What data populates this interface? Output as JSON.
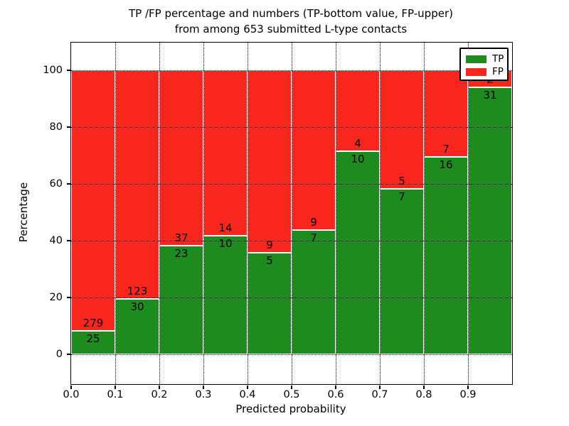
{
  "title": {
    "line1": "TP /FP percentage and numbers (TP-bottom value, FP-upper)",
    "line2": "from among 653 submitted L-type contacts"
  },
  "axes": {
    "xlabel": "Predicted probability",
    "ylabel": "Percentage",
    "x_tick_labels": [
      "0.0",
      "0.1",
      "0.2",
      "0.3",
      "0.4",
      "0.5",
      "0.6",
      "0.7",
      "0.8",
      "0.9"
    ],
    "y_tick_labels": [
      "0",
      "20",
      "40",
      "60",
      "80",
      "100"
    ],
    "y_tick_values": [
      0,
      20,
      40,
      60,
      80,
      100
    ]
  },
  "legend": {
    "position": "upper right",
    "items": [
      {
        "label": "TP",
        "color": "#1e8b1e"
      },
      {
        "label": "FP",
        "color": "#f8261d"
      }
    ]
  },
  "colors": {
    "tp": "#1e8b1e",
    "fp": "#f8261d",
    "grid": "#000000",
    "background": "#ffffff",
    "bar_edge": "#ffffff"
  },
  "chart_data": {
    "type": "bar",
    "stacked": true,
    "normalized": "each bin scaled to 100%, TP bottom segment, FP upper segment",
    "title": "TP /FP percentage and numbers (TP-bottom value, FP-upper) from among 653 submitted L-type contacts",
    "xlabel": "Predicted probability",
    "ylabel": "Percentage",
    "xlim": [
      0.0,
      1.0
    ],
    "ylim": [
      -10,
      110
    ],
    "grid": true,
    "grid_style": "dotted",
    "legend_position": "upper right",
    "bin_width": 0.1,
    "bin_starts": [
      0.0,
      0.1,
      0.2,
      0.3,
      0.4,
      0.5,
      0.6,
      0.7,
      0.8,
      0.9
    ],
    "categories": [
      "0.0-0.1",
      "0.1-0.2",
      "0.2-0.3",
      "0.3-0.4",
      "0.4-0.5",
      "0.5-0.6",
      "0.6-0.7",
      "0.7-0.8",
      "0.8-0.9",
      "0.9-1.0"
    ],
    "series": [
      {
        "name": "TP",
        "counts": [
          25,
          30,
          23,
          10,
          5,
          7,
          10,
          7,
          16,
          31
        ]
      },
      {
        "name": "FP",
        "counts": [
          279,
          123,
          37,
          14,
          9,
          9,
          4,
          5,
          7,
          2
        ]
      }
    ],
    "tp_percent": [
      8.2,
      19.6,
      38.3,
      41.7,
      35.7,
      43.8,
      71.4,
      58.3,
      69.6,
      93.9
    ],
    "total_contacts": 653
  }
}
